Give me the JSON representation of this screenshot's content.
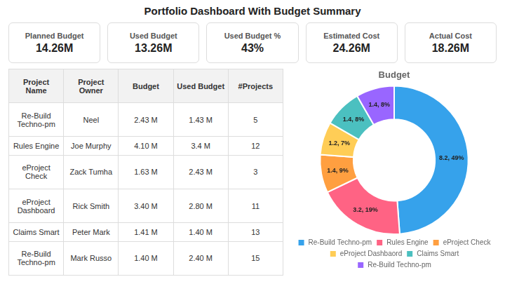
{
  "title": "Portfolio Dashboard With Budget Summary",
  "kpi_cards": [
    {
      "label": "Planned Budget",
      "value": "14.26M"
    },
    {
      "label": "Used Budget",
      "value": "13.26M"
    },
    {
      "label": "Used Budget %",
      "value": "43%"
    },
    {
      "label": "Estimated Cost",
      "value": "24.26M"
    },
    {
      "label": "Actual Cost",
      "value": "18.26M"
    }
  ],
  "table": {
    "headers": [
      "Project\nName",
      "Project\nOwner",
      "Budget",
      "Used Budget",
      "#Projects"
    ],
    "rows": [
      [
        "Re-Build\nTechno-pm",
        "Neel",
        "2.43 M",
        "1.43 M",
        "5"
      ],
      [
        "Rules Engine",
        "Joe Murphy",
        "4.10 M",
        "3.4 M",
        "12"
      ],
      [
        "eProject Check",
        "Zack Tumha",
        "1.63 M",
        "2.43 M",
        "3"
      ],
      [
        "eProject\nDashboard",
        "Rick Smith",
        "3.40 M",
        "2.80 M",
        "11"
      ],
      [
        "Claims Smart",
        "Peter Mark",
        "1.41 M",
        "1.40 M",
        "13"
      ],
      [
        "Re-Build\nTechno-pm",
        "Mark Russo",
        "1.40 M",
        "2.40 M",
        "15"
      ]
    ]
  },
  "chart_data": {
    "type": "donut",
    "title": "Budget",
    "categories": [
      "Re-Build Techno-pm",
      "Rules Engine",
      "eProject Check",
      "eProject Dashbaord",
      "Claims Smart",
      "Re-Build Techno-pm"
    ],
    "values": [
      8.2,
      3.2,
      1.4,
      1.2,
      1.4,
      1.4
    ],
    "value_labels": [
      "8.2, 49%",
      "3.2, 19%",
      "1.4, 9%",
      "1.2, 7%",
      "1.4, 8%",
      "1.4, 8%"
    ],
    "data_labels": true,
    "legend": "bottom"
  }
}
